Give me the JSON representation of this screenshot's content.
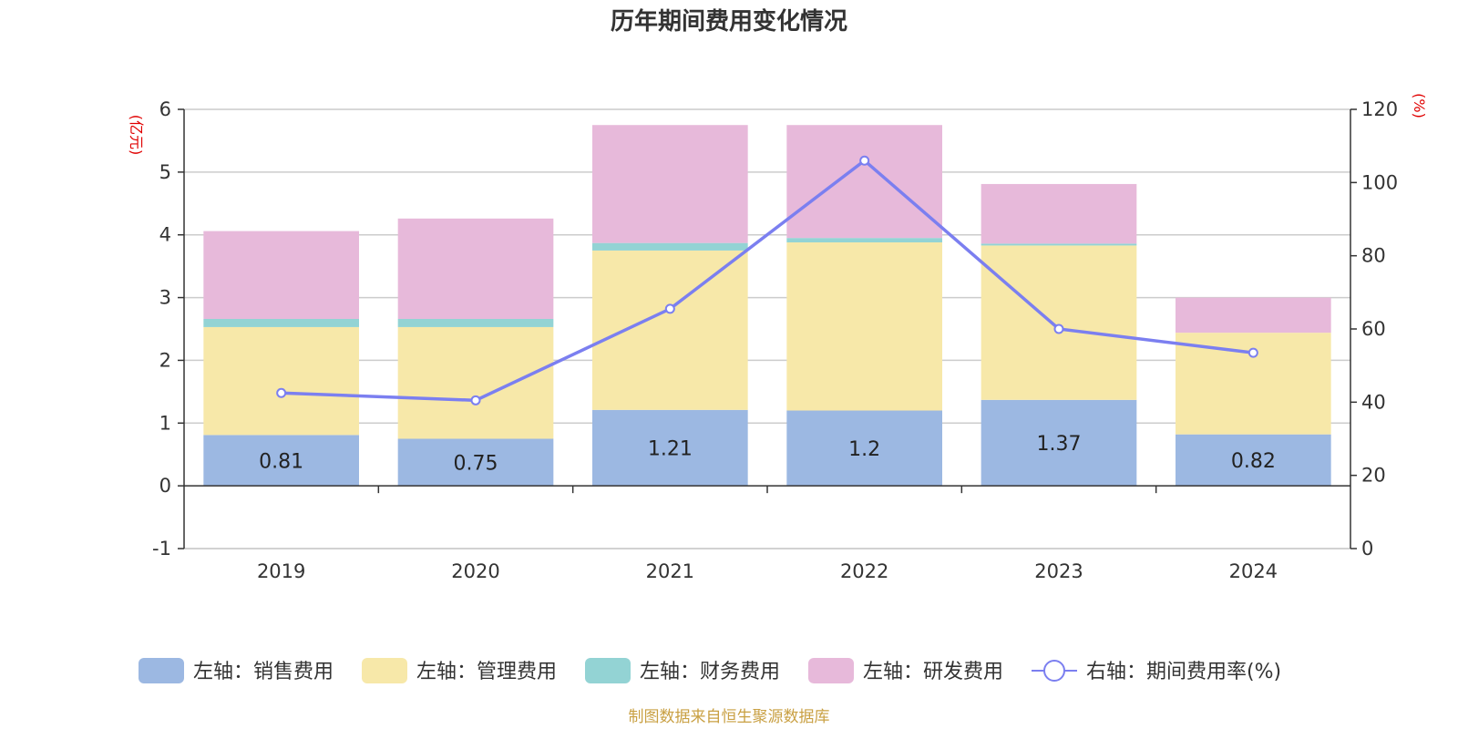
{
  "chart_data": {
    "type": "bar",
    "stacked": true,
    "title": "历年期间费用变化情况",
    "categories": [
      "2019",
      "2020",
      "2021",
      "2022",
      "2023",
      "2024"
    ],
    "left_axis": {
      "unit": "(亿元)",
      "ylim": [
        -1,
        6
      ],
      "ticks": [
        -1,
        0,
        1,
        2,
        3,
        4,
        5,
        6
      ]
    },
    "right_axis": {
      "unit": "(%)",
      "ylim": [
        0,
        120
      ],
      "ticks": [
        0,
        20,
        40,
        60,
        80,
        100,
        120
      ]
    },
    "series": [
      {
        "name": "左轴：销售费用",
        "axis": "left",
        "color": "#9cb8e2",
        "values": [
          0.81,
          0.75,
          1.21,
          1.2,
          1.37,
          0.82
        ],
        "show_labels": true
      },
      {
        "name": "左轴：管理费用",
        "axis": "left",
        "color": "#f7e8a9",
        "values": [
          1.72,
          1.78,
          2.54,
          2.68,
          2.46,
          1.62
        ],
        "show_labels": false
      },
      {
        "name": "左轴：财务费用",
        "axis": "left",
        "color": "#93d3d4",
        "values": [
          0.13,
          0.13,
          0.12,
          0.07,
          0.03,
          0.0
        ],
        "show_labels": false
      },
      {
        "name": "左轴：研发费用",
        "axis": "left",
        "color": "#e7b9da",
        "values": [
          1.4,
          1.6,
          1.88,
          1.8,
          0.95,
          0.56
        ],
        "show_labels": false
      },
      {
        "name": "右轴：期间费用率(%)",
        "axis": "right",
        "type": "line",
        "color": "#7b7ff0",
        "values": [
          42.5,
          40.5,
          65.5,
          106,
          60,
          53.5
        ]
      }
    ],
    "source": "制图数据来自恒生聚源数据库"
  }
}
